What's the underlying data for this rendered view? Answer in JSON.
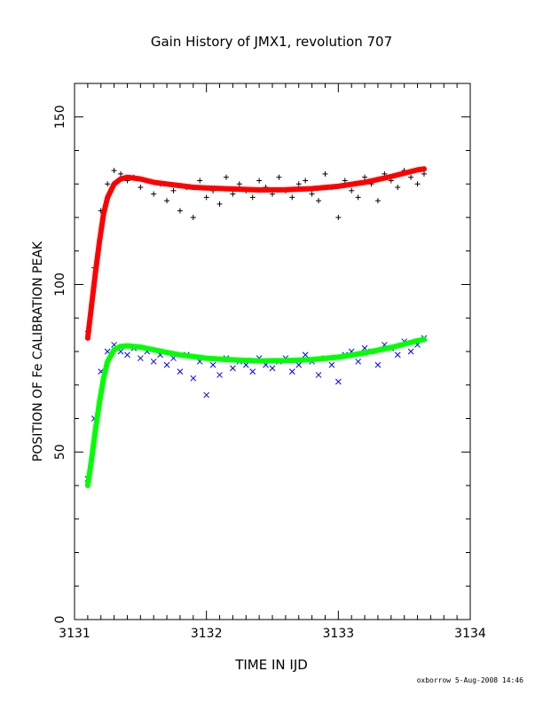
{
  "page": {
    "title": "Gain History of JMX1, revolution 707",
    "footer": "oxborrow   5-Aug-2008 14:46"
  },
  "chart_data": {
    "type": "scatter",
    "title": "Gain History of JMX1, revolution 707",
    "xlabel": "TIME IN IJD",
    "ylabel": "POSITION OF Fe CALIBRATION PEAK",
    "xlim": [
      3131,
      3134
    ],
    "ylim": [
      0,
      160
    ],
    "xticks": [
      3131,
      3132,
      3133,
      3134
    ],
    "yticks": [
      0,
      50,
      100,
      150
    ],
    "grid": false,
    "colors": {
      "upper_points": "#000000",
      "upper_fit": "#ff0000",
      "lower_points": "#0000ff",
      "lower_fit": "#00ff00"
    },
    "series": [
      {
        "marker": "plus",
        "color": "#000000",
        "x": [
          3131.1,
          3131.15,
          3131.2,
          3131.25,
          3131.3,
          3131.35,
          3131.4,
          3131.45,
          3131.5,
          3131.55,
          3131.6,
          3131.65,
          3131.7,
          3131.75,
          3131.8,
          3131.85,
          3131.9,
          3131.95,
          3132.0,
          3132.05,
          3132.1,
          3132.15,
          3132.2,
          3132.25,
          3132.3,
          3132.35,
          3132.4,
          3132.45,
          3132.5,
          3132.55,
          3132.6,
          3132.65,
          3132.7,
          3132.75,
          3132.8,
          3132.85,
          3132.9,
          3132.95,
          3133.0,
          3133.05,
          3133.1,
          3133.15,
          3133.2,
          3133.25,
          3133.3,
          3133.35,
          3133.4,
          3133.45,
          3133.5,
          3133.55,
          3133.6,
          3133.65
        ],
        "y": [
          86,
          105,
          122,
          130,
          134,
          133,
          131,
          132,
          129,
          131,
          127,
          130,
          125,
          128,
          122,
          129,
          120,
          131,
          126,
          128,
          124,
          132,
          127,
          130,
          128,
          126,
          131,
          129,
          127,
          132,
          128,
          126,
          130,
          131,
          127,
          125,
          133,
          129,
          120,
          131,
          128,
          126,
          132,
          130,
          125,
          133,
          131,
          129,
          134,
          132,
          130,
          133
        ]
      },
      {
        "marker": "cross",
        "color": "#0000ff",
        "x": [
          3131.1,
          3131.15,
          3131.2,
          3131.25,
          3131.3,
          3131.35,
          3131.4,
          3131.45,
          3131.5,
          3131.55,
          3131.6,
          3131.65,
          3131.7,
          3131.75,
          3131.8,
          3131.85,
          3131.9,
          3131.95,
          3132.0,
          3132.05,
          3132.1,
          3132.15,
          3132.2,
          3132.25,
          3132.3,
          3132.35,
          3132.4,
          3132.45,
          3132.5,
          3132.55,
          3132.6,
          3132.65,
          3132.7,
          3132.75,
          3132.8,
          3132.85,
          3132.9,
          3132.95,
          3133.0,
          3133.05,
          3133.1,
          3133.15,
          3133.2,
          3133.25,
          3133.3,
          3133.35,
          3133.4,
          3133.45,
          3133.5,
          3133.55,
          3133.6,
          3133.65
        ],
        "y": [
          42,
          60,
          74,
          80,
          82,
          80,
          79,
          81,
          78,
          80,
          77,
          79,
          76,
          78,
          74,
          79,
          72,
          77,
          67,
          76,
          73,
          78,
          75,
          77,
          76,
          74,
          78,
          76,
          75,
          77,
          78,
          74,
          76,
          79,
          77,
          73,
          78,
          76,
          71,
          79,
          80,
          77,
          81,
          80,
          76,
          82,
          81,
          79,
          83,
          80,
          82,
          84
        ]
      },
      {
        "marker": "line",
        "color": "#ff0000",
        "x": [
          3131.1,
          3131.13,
          3131.16,
          3131.19,
          3131.22,
          3131.25,
          3131.3,
          3131.35,
          3131.4,
          3131.5,
          3131.6,
          3131.7,
          3131.8,
          3131.9,
          3132.0,
          3132.2,
          3132.4,
          3132.6,
          3132.8,
          3133.0,
          3133.2,
          3133.4,
          3133.6,
          3133.65
        ],
        "y": [
          84,
          94,
          104,
          113,
          121,
          126,
          130,
          131.5,
          132,
          131.5,
          130.5,
          130,
          129.5,
          129,
          128.8,
          128.5,
          128.2,
          128.3,
          128.6,
          129.3,
          130.5,
          132.2,
          134.2,
          134.5
        ]
      },
      {
        "marker": "line",
        "color": "#00ff00",
        "x": [
          3131.1,
          3131.13,
          3131.16,
          3131.19,
          3131.22,
          3131.25,
          3131.3,
          3131.35,
          3131.4,
          3131.5,
          3131.6,
          3131.7,
          3131.8,
          3131.9,
          3132.0,
          3132.2,
          3132.4,
          3132.6,
          3132.8,
          3133.0,
          3133.2,
          3133.4,
          3133.6,
          3133.65
        ],
        "y": [
          40,
          48,
          57,
          65,
          72,
          77,
          80.5,
          81.5,
          81.7,
          81.3,
          80.5,
          79.7,
          79,
          78.5,
          78,
          77.5,
          77.2,
          77.3,
          77.6,
          78.3,
          79.6,
          81.2,
          83.2,
          83.6
        ]
      }
    ]
  }
}
